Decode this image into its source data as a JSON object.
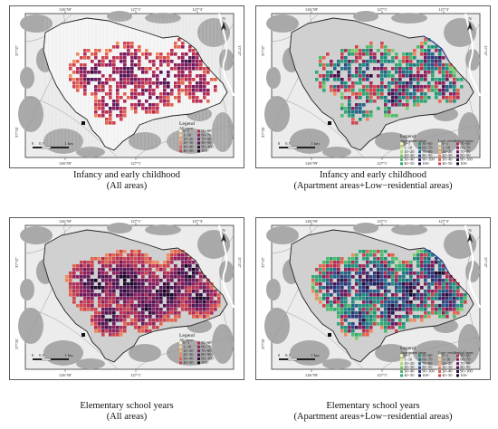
{
  "panels": [
    {
      "id": "tl",
      "title_line1": "Infancy and early childhood",
      "title_line2": "(All areas)",
      "mode": "all",
      "legend": {
        "title": "Legend",
        "groups": [
          {
            "name": "All areas",
            "palette": "warm"
          }
        ]
      }
    },
    {
      "id": "tr",
      "title_line1": "Infancy and early childhood",
      "title_line2": "(Apartment areas+Low−residential areas)",
      "mode": "split",
      "legend": {
        "title": "Legend",
        "groups": [
          {
            "name": "Apartment areas",
            "palette": "cool"
          },
          {
            "name": "Low−residential areas",
            "palette": "warm"
          }
        ]
      }
    },
    {
      "id": "bl",
      "title_line1": "Elementary school years",
      "title_line2": "(All areas)",
      "mode": "all",
      "legend": {
        "title": "Legend",
        "groups": [
          {
            "name": "All areas",
            "palette": "warm"
          }
        ]
      }
    },
    {
      "id": "br",
      "title_line1": "Elementary school years",
      "title_line2": "(Apartment areas+Low−residential areas)",
      "mode": "split",
      "legend": {
        "title": "Legend",
        "groups": [
          {
            "name": "Apartment areas",
            "palette": "cool"
          },
          {
            "name": "Low−residential areas",
            "palette": "warm"
          }
        ]
      }
    }
  ],
  "legend_classes": [
    "0−1",
    "1−10",
    "10−20",
    "20−30",
    "30−40",
    "40−50",
    "50−60",
    "60−70",
    "70−80",
    "80−90",
    "90−100",
    "100−"
  ],
  "palettes": {
    "warm": [
      "#fde9cf",
      "#fbcf9a",
      "#f8b074",
      "#f2895c",
      "#e5644e",
      "#cf434f",
      "#b32d57",
      "#8f1f5e",
      "#6c1a5c",
      "#4d1452",
      "#2e0d3e",
      "#14071f"
    ],
    "cool": [
      "#f3f9b0",
      "#d2ec8a",
      "#a9dd74",
      "#7ccd6c",
      "#4fbc6d",
      "#2ea874",
      "#1f927c",
      "#1f7b83",
      "#26638a",
      "#2d4b89",
      "#2e3379",
      "#1f1d57"
    ]
  },
  "ticks": {
    "top": [
      "126°59'",
      "127°1'",
      "127°3'"
    ],
    "bottom": [
      "126°59'",
      "127°1'"
    ],
    "left_top": "37°37'",
    "left_bottom": "37°35'",
    "right_top": "37°37'"
  },
  "scale_bar": {
    "zero": "0",
    "mid": "0.5",
    "end": "1 km"
  },
  "north_label": "N",
  "colors": {
    "frame": "#333333",
    "base": "#a9a9a9",
    "base_light": "#d0d0d0",
    "district_bg": "#ffffff",
    "boundary": "#222222"
  }
}
